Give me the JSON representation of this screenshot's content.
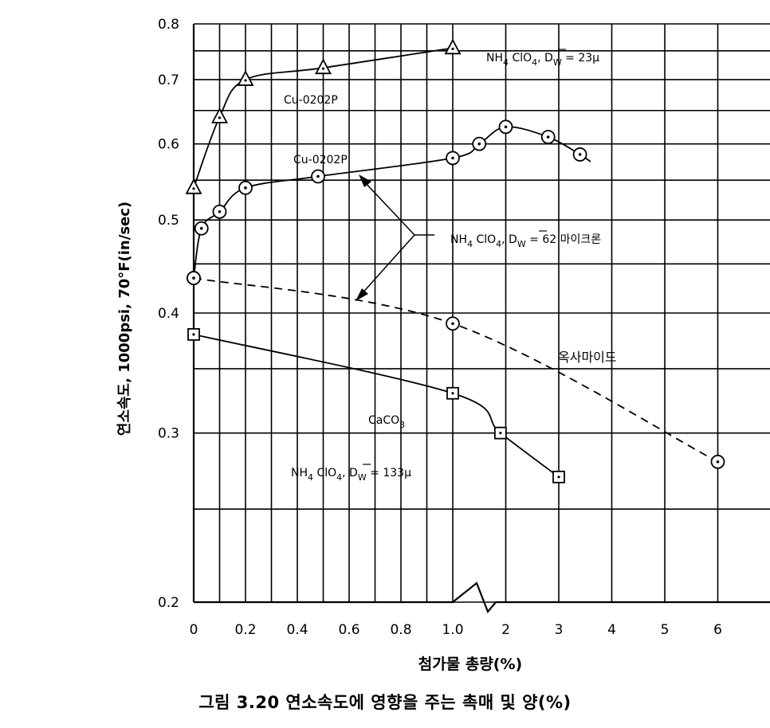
{
  "chart_data": {
    "type": "line",
    "ylabel": "연소속도, 1000psi, 70°F(in/sec)",
    "xlabel": "첨가물 총량(%)",
    "yscale": "log",
    "ylim": [
      0.2,
      0.8
    ],
    "y_ticks": [
      "0.8",
      "0.7",
      "0.6",
      "0.5",
      "0.4",
      "0.3",
      "0.2"
    ],
    "x_axis": {
      "note": "broken axis: 0–1.0 linear, then 1–6",
      "ticks": [
        "0",
        "0.2",
        "0.4",
        "0.6",
        "0.8",
        "1.0",
        "2",
        "3",
        "4",
        "5",
        "6"
      ]
    },
    "grid": true,
    "series": [
      {
        "name": "NH4 ClO4, D̄W = 23μ",
        "marker": "triangle",
        "line": "solid",
        "x": [
          0,
          0.1,
          0.2,
          0.5,
          1.0
        ],
        "y": [
          0.54,
          0.64,
          0.7,
          0.72,
          0.755
        ]
      },
      {
        "name": "NH4 ClO4, D̄W = 62 마이크론",
        "marker": "circle-dot",
        "line": "solid",
        "x": [
          0,
          0.03,
          0.1,
          0.2,
          0.48,
          1.0,
          1.5,
          2.0,
          2.8,
          3.4
        ],
        "y": [
          0.435,
          0.49,
          0.51,
          0.54,
          0.555,
          0.58,
          0.6,
          0.625,
          0.61,
          0.585
        ]
      },
      {
        "name": "옥사마이드",
        "marker": "circle-dot",
        "line": "dashed",
        "x": [
          0,
          1.0,
          6.0
        ],
        "y": [
          0.435,
          0.39,
          0.28
        ]
      },
      {
        "name": "NH4 ClO4, D̄W = 133μ",
        "marker": "square-dot",
        "line": "solid",
        "x": [
          0,
          1.0,
          1.9,
          3.0
        ],
        "y": [
          0.38,
          0.33,
          0.3,
          0.27
        ]
      }
    ],
    "labels": {
      "cu1": "Cu-0202P",
      "cu2": "Cu-0202P",
      "s1": {
        "pre": "NH",
        "s1": "4",
        "mid": " ClO",
        "s2": "4",
        "d": ", D",
        "s3": "W",
        "post": " = 23μ"
      },
      "s2": {
        "pre": "NH",
        "s1": "4",
        "mid": " ClO",
        "s2": "4",
        "d": ", D",
        "s3": "W",
        "post": " = 62 마이크론"
      },
      "s3": {
        "pre": "NH",
        "s1": "4",
        "mid": " ClO",
        "s2": "4",
        "d": ", D",
        "s3": "W",
        "post": " = 133μ"
      },
      "oxamide": "옥사마이드",
      "caco3": {
        "pre": "CaCO",
        "sub": "3"
      }
    },
    "caption": "그림 3.20  연소속도에 영향을 주는 촉매 및 양(%)"
  }
}
